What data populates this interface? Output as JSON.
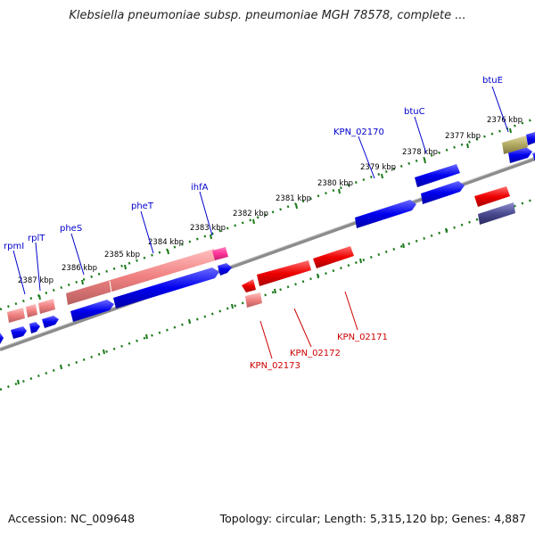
{
  "title": "Klebsiella pneumoniae subsp. pneumoniae MGH 78578, complete ...",
  "footer": {
    "accession": "Accession: NC_009648",
    "summary": "Topology: circular; Length: 5,315,120 bp; Genes: 4,887"
  },
  "colors": {
    "backbone": "#8c8c8c",
    "tick": "#1a7a1a",
    "forward_gene": "#0000ee",
    "reverse_gene": "#ee0000",
    "rna": "#f08080",
    "trna": "#ff3399",
    "other_gene": "#b0a860",
    "other_gene_2": "#4a4a90",
    "forward_label": "#0000cc",
    "reverse_label": "#cc0000"
  },
  "ticks": [
    "2376 kbp",
    "2377 kbp",
    "2378 kbp",
    "2379 kbp",
    "2380 kbp",
    "2381 kbp",
    "2382 kbp",
    "2383 kbp",
    "2384 kbp",
    "2385 kbp",
    "2386 kbp",
    "2387 kbp"
  ],
  "gene_labels": {
    "forward": [
      "btuE",
      "btuC",
      "KPN_02170",
      "ihfA",
      "pheT",
      "pheS",
      "rplT",
      "rpmI"
    ],
    "reverse": [
      "KPN_02171",
      "KPN_02172",
      "KPN_02173"
    ]
  }
}
